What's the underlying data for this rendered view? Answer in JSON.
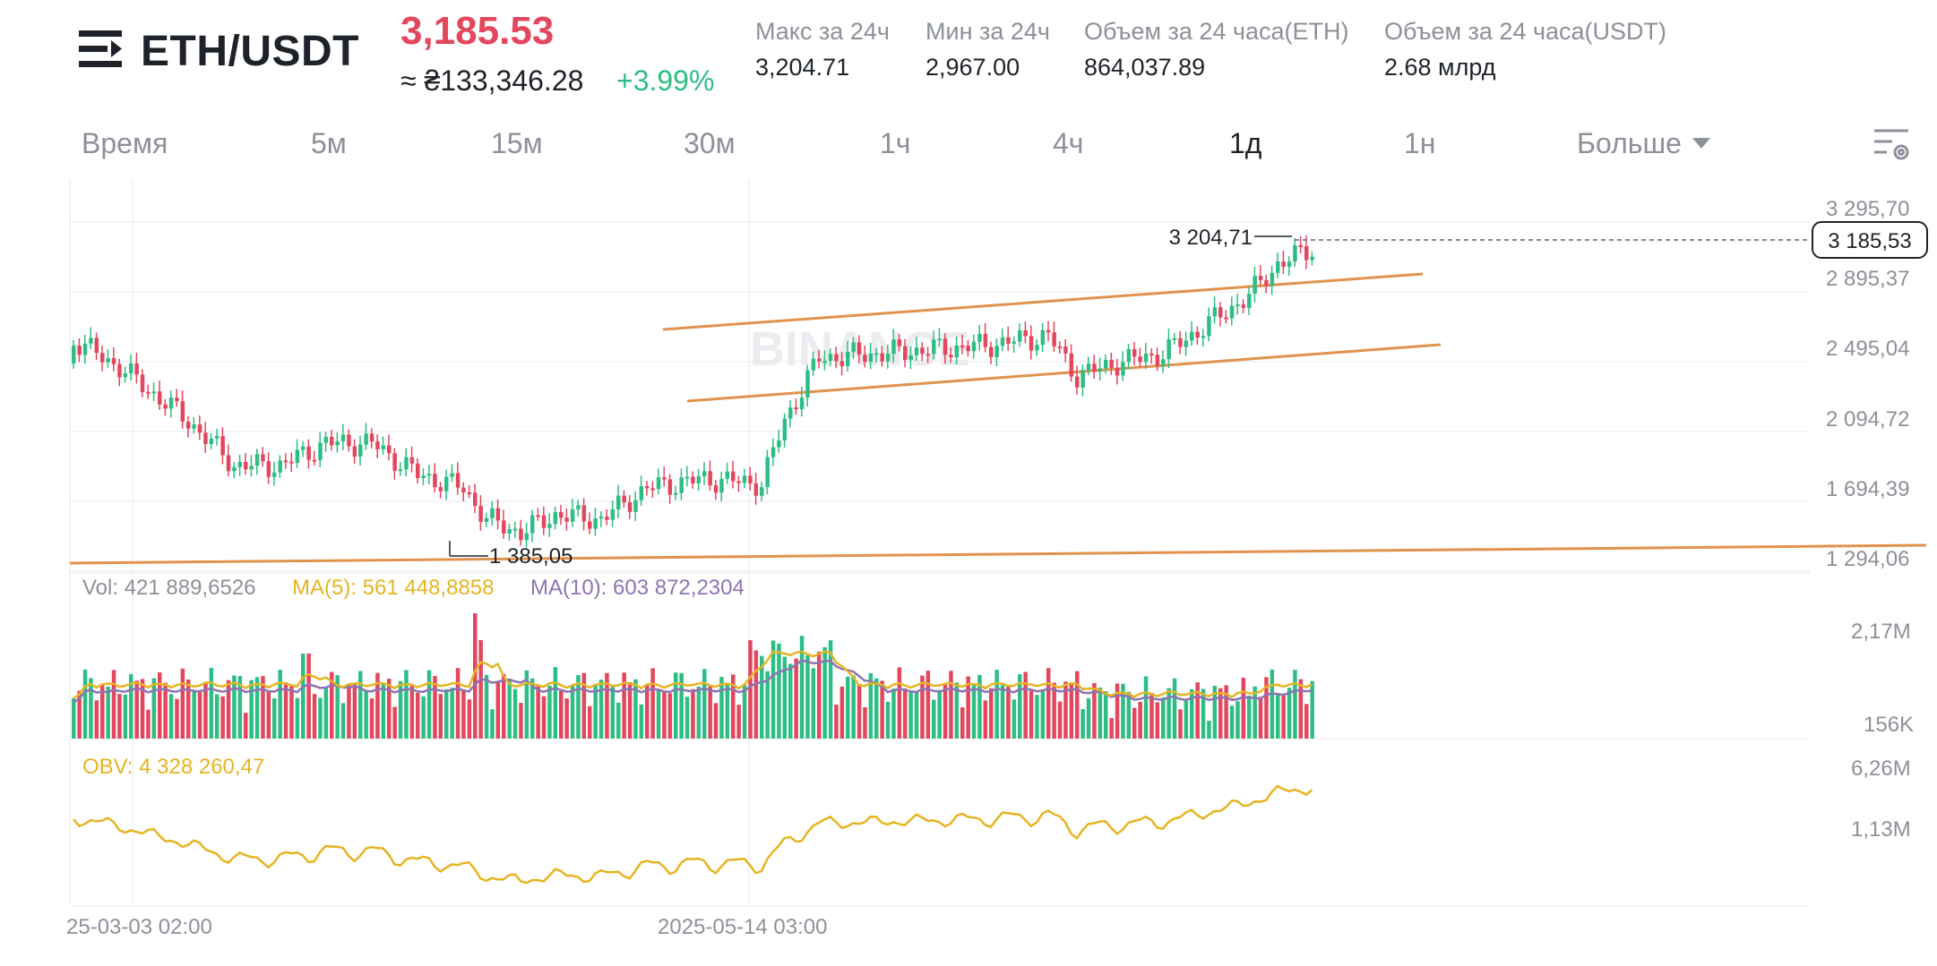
{
  "header": {
    "menu_icon": "menu-icon",
    "pair": "ETH/USDT",
    "price": "3,185.53",
    "approx_price": "≈ ₴133,346.28",
    "change_pct": "+3.99%",
    "stats": [
      {
        "label": "Макс за 24ч",
        "value": "3,204.71"
      },
      {
        "label": "Мин за 24ч",
        "value": "2,967.00"
      },
      {
        "label": "Объем за 24 часа(ETH)",
        "value": "864,037.89"
      },
      {
        "label": "Объем за 24 часа(USDT)",
        "value": "2.68 млрд"
      }
    ]
  },
  "tabs": [
    {
      "label": "Время",
      "active": false
    },
    {
      "label": "5м",
      "active": false
    },
    {
      "label": "15м",
      "active": false
    },
    {
      "label": "30м",
      "active": false
    },
    {
      "label": "1ч",
      "active": false
    },
    {
      "label": "4ч",
      "active": false
    },
    {
      "label": "1д",
      "active": true
    },
    {
      "label": "1н",
      "active": false
    },
    {
      "label": "Больше",
      "active": false,
      "icon": "caret-down-icon"
    }
  ],
  "settings_icon": "chart-settings-icon",
  "colors": {
    "up": "#2ebd85",
    "down": "#e2475e",
    "trend": "#e0924e",
    "ma5": "#e6b422",
    "ma10": "#8e74b3",
    "obv": "#e6b422"
  },
  "chart_data": {
    "type": "candlestick",
    "price_axis_ticks": [
      "3 295,70",
      "2 895,37",
      "2 495,04",
      "2 094,72",
      "1 694,39",
      "1 294,06"
    ],
    "current_price_label": "3 185,53",
    "high_annotation": "3 204,71",
    "low_annotation": "1 385,05",
    "watermark": "BINANCE",
    "volume": {
      "label": "Vol: 421 889,6526",
      "ma5_label": "MA(5): 561 448,8858",
      "ma10_label": "MA(10): 603 872,2304",
      "axis_ticks": [
        "2,17M",
        "156K"
      ]
    },
    "obv": {
      "label": "OBV: 4 328 260,47",
      "axis_ticks": [
        "6,26M",
        "1,13M"
      ]
    },
    "time_ticks": [
      "25-03-03 02:00",
      "2025-05-14 03:00"
    ]
  }
}
